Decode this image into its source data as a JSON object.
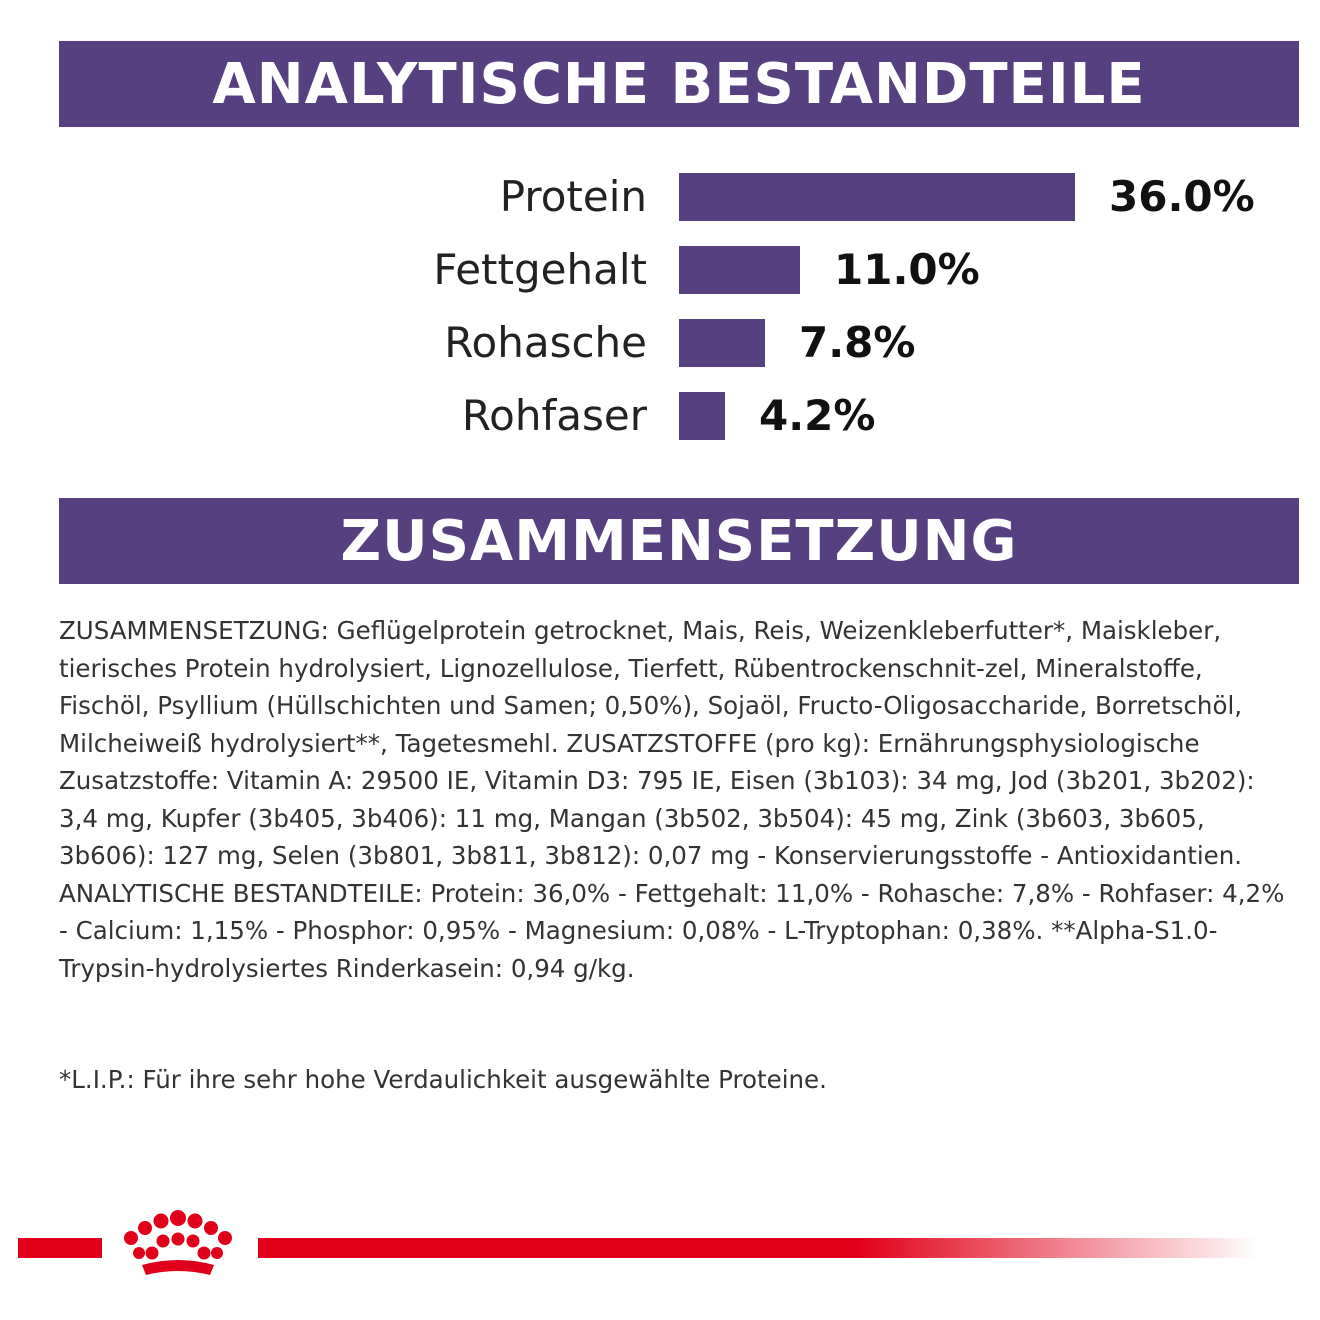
{
  "colors": {
    "brand_purple": "#564080",
    "brand_red": "#e1001a"
  },
  "headers": {
    "analysis_title": "ANALYTISCHE BESTANDTEILE",
    "composition_title": "ZUSAMMENSETZUNG"
  },
  "chart_data": {
    "type": "bar",
    "orientation": "horizontal",
    "categories": [
      "Protein",
      "Fettgehalt",
      "Rohasche",
      "Rohfaser"
    ],
    "values": [
      36.0,
      11.0,
      7.8,
      4.2
    ],
    "value_labels": [
      "36.0%",
      "11.0%",
      "7.8%",
      "4.2%"
    ],
    "xlim": [
      0,
      36.0
    ],
    "grid": false,
    "title": "",
    "xlabel": "",
    "ylabel": ""
  },
  "composition": {
    "text": "ZUSAMMENSETZUNG: Geflügelprotein getrocknet, Mais, Reis, Weizenkleberfutter*, Maiskleber, tierisches Protein hydrolysiert, Lignozellulose, Tierfett, Rübentrockenschnit-zel, Mineralstoffe, Fischöl, Psyllium (Hüllschichten und Samen; 0,50%), Sojaöl, Fructo-Oligosaccharide, Borretschöl, Milcheiweiß hydrolysiert**, Tagetesmehl. ZUSATZSTOFFE (pro kg): Ernährungsphysiologische Zusatzstoffe: Vitamin A: 29500 IE, Vitamin D3: 795 IE, Eisen (3b103): 34 mg, Jod (3b201, 3b202): 3,4 mg, Kupfer (3b405, 3b406): 11 mg, Mangan (3b502, 3b504): 45 mg, Zink (3b603, 3b605, 3b606): 127 mg, Selen (3b801, 3b811, 3b812): 0,07 mg - Konservierungsstoffe - Antioxidantien. ANALYTISCHE BESTANDTEILE: Protein: 36,0% - Fettgehalt: 11,0% - Rohasche: 7,8% - Rohfaser: 4,2% - Calcium: 1,15% - Phosphor: 0,95% - Magnesium: 0,08% - L-Tryptophan: 0,38%. **Alpha-S1.0-Trypsin-hydrolysiertes Rinderkasein: 0,94 g/kg.",
    "footnote": "*L.I.P.: Für ihre sehr hohe Verdaulichkeit ausgewählte Proteine."
  },
  "footer": {
    "logo_icon": "royal-canin-crown-icon"
  }
}
